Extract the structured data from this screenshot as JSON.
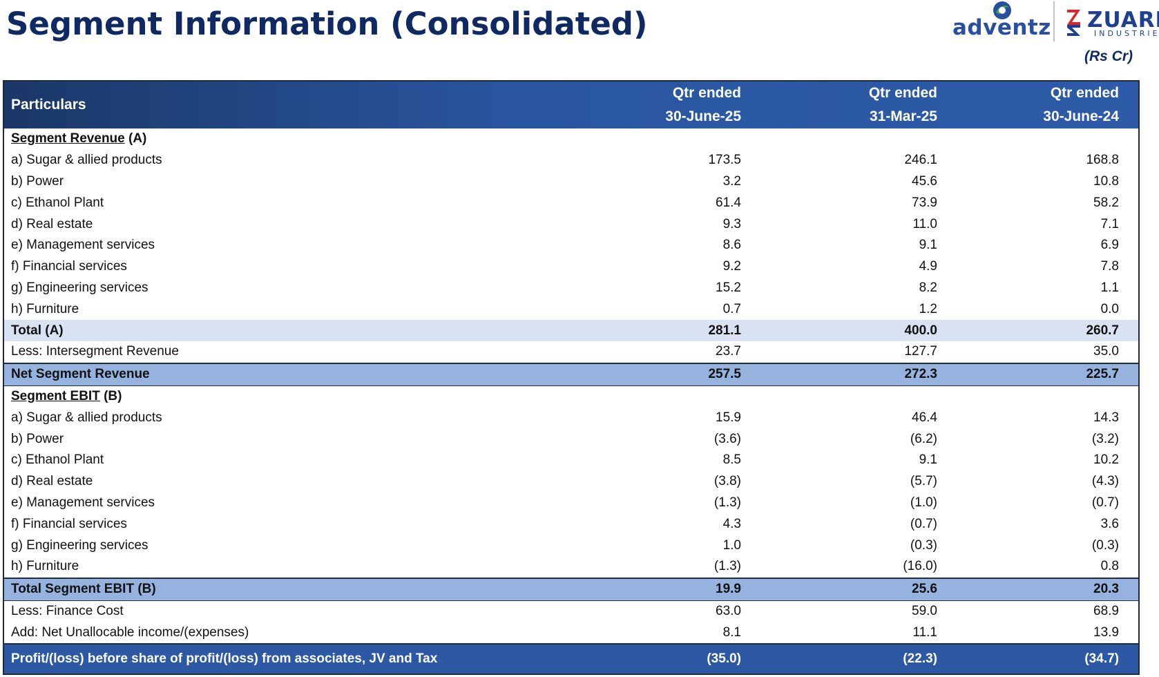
{
  "page": {
    "title": "Segment Information (Consolidated)",
    "units": "(Rs Cr)"
  },
  "logos": {
    "adventz": "adventz",
    "zuari": "ZUARI",
    "zuari_sub": "INDUSTRIES",
    "colors": {
      "adventz_blue": "#2a4fa0",
      "adventz_green": "#3aa84a",
      "zuari_red": "#d8262f",
      "zuari_blue": "#1f3f8f"
    }
  },
  "table": {
    "header": {
      "particulars": "Particulars",
      "columns": [
        {
          "line1": "Qtr ended",
          "line2": "30-June-25"
        },
        {
          "line1": "Qtr ended",
          "line2": "31-Mar-25"
        },
        {
          "line1": "Qtr ended",
          "line2": "30-June-24"
        }
      ]
    },
    "rows": [
      {
        "type": "section",
        "label_u": "Segment Revenue",
        "label_rest": " (A)"
      },
      {
        "type": "item",
        "label": "a) Sugar & allied products",
        "values": [
          "173.5",
          "246.1",
          "168.8"
        ]
      },
      {
        "type": "item",
        "label": "b) Power",
        "values": [
          "3.2",
          "45.6",
          "10.8"
        ]
      },
      {
        "type": "item",
        "label": "c) Ethanol Plant",
        "values": [
          "61.4",
          "73.9",
          "58.2"
        ]
      },
      {
        "type": "item",
        "label": "d) Real estate",
        "values": [
          "9.3",
          "11.0",
          "7.1"
        ]
      },
      {
        "type": "item",
        "label": "e) Management services",
        "values": [
          "8.6",
          "9.1",
          "6.9"
        ]
      },
      {
        "type": "item",
        "label": "f) Financial services",
        "values": [
          "9.2",
          "4.9",
          "7.8"
        ]
      },
      {
        "type": "item",
        "label": "g) Engineering services",
        "values": [
          "15.2",
          "8.2",
          "1.1"
        ]
      },
      {
        "type": "item",
        "label": "h) Furniture",
        "values": [
          "0.7",
          "1.2",
          "0.0"
        ]
      },
      {
        "type": "total",
        "label": "Total (A)",
        "values": [
          "281.1",
          "400.0",
          "260.7"
        ]
      },
      {
        "type": "item",
        "label": "Less: Intersegment Revenue",
        "values": [
          "23.7",
          "127.7",
          "35.0"
        ]
      },
      {
        "type": "net",
        "label": "Net Segment Revenue",
        "values": [
          "257.5",
          "272.3",
          "225.7"
        ]
      },
      {
        "type": "section",
        "label_u": "Segment EBIT",
        "label_rest": " (B)"
      },
      {
        "type": "item",
        "label": "a) Sugar & allied products",
        "values": [
          "15.9",
          "46.4",
          "14.3"
        ]
      },
      {
        "type": "item",
        "label": "b) Power",
        "values": [
          "(3.6)",
          "(6.2)",
          "(3.2)"
        ]
      },
      {
        "type": "item",
        "label": "c) Ethanol Plant",
        "values": [
          "8.5",
          "9.1",
          "10.2"
        ]
      },
      {
        "type": "item",
        "label": "d) Real estate",
        "values": [
          "(3.8)",
          "(5.7)",
          "(4.3)"
        ]
      },
      {
        "type": "item",
        "label": "e) Management services",
        "values": [
          "(1.3)",
          "(1.0)",
          "(0.7)"
        ]
      },
      {
        "type": "item",
        "label": "f) Financial services",
        "values": [
          "4.3",
          "(0.7)",
          "3.6"
        ]
      },
      {
        "type": "item",
        "label": "g) Engineering services",
        "values": [
          "1.0",
          "(0.3)",
          "(0.3)"
        ]
      },
      {
        "type": "item",
        "label": "h) Furniture",
        "values": [
          "(1.3)",
          "(16.0)",
          "0.8"
        ]
      },
      {
        "type": "net",
        "label": "Total Segment EBIT (B)",
        "values": [
          "19.9",
          "25.6",
          "20.3"
        ]
      },
      {
        "type": "item",
        "label": "Less: Finance Cost",
        "values": [
          "63.0",
          "59.0",
          "68.9"
        ]
      },
      {
        "type": "item",
        "label": "Add: Net Unallocable income/(expenses)",
        "values": [
          "8.1",
          "11.1",
          "13.9"
        ]
      },
      {
        "type": "final",
        "label": "Profit/(loss) before share of profit/(loss) from associates, JV and Tax",
        "values": [
          "(35.0)",
          "(22.3)",
          "(34.7)"
        ]
      }
    ]
  }
}
